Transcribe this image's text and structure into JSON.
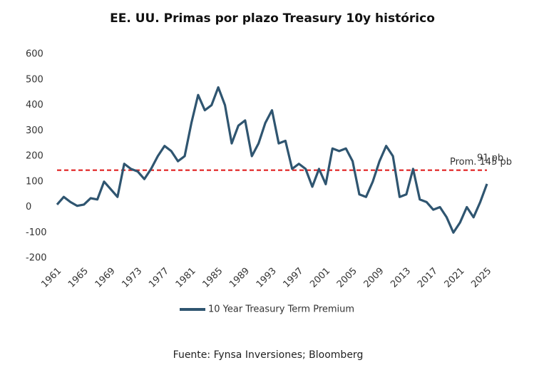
{
  "chart_data": {
    "type": "line",
    "title": "EE. UU.  Primas por plazo Treasury 10y histórico",
    "source": "Fuente: Fynsa Inversiones; Bloomberg",
    "x": [
      1961,
      1962,
      1963,
      1964,
      1965,
      1966,
      1967,
      1968,
      1969,
      1970,
      1971,
      1972,
      1973,
      1974,
      1975,
      1976,
      1977,
      1978,
      1979,
      1980,
      1981,
      1982,
      1983,
      1984,
      1985,
      1986,
      1987,
      1988,
      1989,
      1990,
      1991,
      1992,
      1993,
      1994,
      1995,
      1996,
      1997,
      1998,
      1999,
      2000,
      2001,
      2002,
      2003,
      2004,
      2005,
      2006,
      2007,
      2008,
      2009,
      2010,
      2011,
      2012,
      2013,
      2014,
      2015,
      2016,
      2017,
      2018,
      2019,
      2020,
      2021,
      2022,
      2023,
      2024,
      2025
    ],
    "series": [
      {
        "name": "10 Year Treasury Term Premium",
        "color": "#2f5570",
        "values": [
          10,
          40,
          20,
          5,
          10,
          35,
          30,
          100,
          70,
          40,
          170,
          150,
          140,
          110,
          150,
          200,
          240,
          220,
          180,
          200,
          330,
          440,
          380,
          400,
          470,
          400,
          250,
          320,
          340,
          200,
          250,
          330,
          380,
          250,
          260,
          150,
          170,
          150,
          80,
          150,
          90,
          230,
          220,
          230,
          180,
          50,
          40,
          100,
          180,
          240,
          200,
          40,
          50,
          150,
          30,
          20,
          -10,
          0,
          -40,
          -100,
          -60,
          0,
          -40,
          20,
          91
        ],
        "value_labels": [
          null,
          null,
          null,
          null,
          null,
          null,
          null,
          null,
          null,
          null,
          null,
          null,
          null,
          null,
          null,
          null,
          null,
          null,
          null,
          null,
          null,
          null,
          null,
          null,
          null,
          null,
          null,
          null,
          null,
          null,
          null,
          null,
          null,
          null,
          null,
          null,
          null,
          null,
          null,
          null,
          null,
          null,
          null,
          null,
          null,
          null,
          null,
          null,
          null,
          null,
          null,
          null,
          null,
          null,
          null,
          null,
          null,
          null,
          null,
          null,
          null,
          null,
          null,
          null,
          "91 pb"
        ]
      }
    ],
    "reference_line": {
      "value": 145,
      "label": "Prom. 145 pb",
      "color": "#e02020"
    },
    "xlim": [
      1961,
      2025
    ],
    "xticks": [
      1961,
      1965,
      1969,
      1973,
      1977,
      1981,
      1985,
      1989,
      1993,
      1997,
      2001,
      2005,
      2009,
      2013,
      2017,
      2021,
      2025
    ],
    "ylim": [
      -200,
      600
    ],
    "yticks": [
      -200,
      -100,
      0,
      100,
      200,
      300,
      400,
      500,
      600
    ],
    "grid": false,
    "legend": "bottom"
  }
}
